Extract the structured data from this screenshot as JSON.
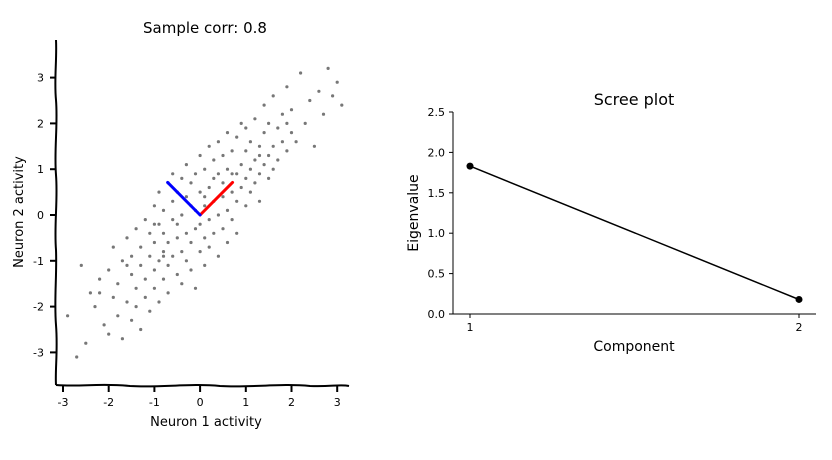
{
  "chart_data": [
    {
      "type": "scatter",
      "style": "xkcd",
      "title": "Sample corr: 0.8",
      "xlabel": "Neuron 1 activity",
      "ylabel": "Neuron 2 activity",
      "xlim": [
        -3.2,
        3.4
      ],
      "ylim": [
        -3.7,
        3.9
      ],
      "xticks": [
        -3,
        -2,
        -1,
        0,
        1,
        2,
        3
      ],
      "yticks": [
        -3,
        -2,
        -1,
        0,
        1,
        2,
        3
      ],
      "xtick_labels": [
        "-3",
        "-2",
        "-1",
        "0",
        "1",
        "2",
        "3"
      ],
      "ytick_labels": [
        "-3",
        "-2",
        "-1",
        "0",
        "1",
        "2",
        "3"
      ],
      "point_color": "#777777",
      "points": [
        [
          -2.9,
          -2.2
        ],
        [
          -2.7,
          -3.1
        ],
        [
          -2.5,
          -2.8
        ],
        [
          -2.4,
          -1.7
        ],
        [
          -2.6,
          -1.1
        ],
        [
          -2.3,
          -2.0
        ],
        [
          -2.2,
          -1.4
        ],
        [
          -2.1,
          -2.4
        ],
        [
          -2.0,
          -2.6
        ],
        [
          -2.0,
          -1.2
        ],
        [
          -1.9,
          -1.8
        ],
        [
          -1.9,
          -0.7
        ],
        [
          -1.8,
          -2.2
        ],
        [
          -1.8,
          -1.5
        ],
        [
          -1.7,
          -1.0
        ],
        [
          -1.7,
          -2.7
        ],
        [
          -1.6,
          -1.9
        ],
        [
          -1.6,
          -0.5
        ],
        [
          -1.5,
          -1.3
        ],
        [
          -1.5,
          -2.3
        ],
        [
          -1.5,
          -0.9
        ],
        [
          -1.4,
          -1.6
        ],
        [
          -1.4,
          -0.3
        ],
        [
          -1.4,
          -2.0
        ],
        [
          -1.3,
          -1.1
        ],
        [
          -1.3,
          -0.7
        ],
        [
          -1.3,
          -2.5
        ],
        [
          -1.2,
          -1.4
        ],
        [
          -1.2,
          -0.1
        ],
        [
          -1.2,
          -1.8
        ],
        [
          -1.1,
          -0.9
        ],
        [
          -1.1,
          -0.4
        ],
        [
          -1.1,
          -2.1
        ],
        [
          -1.0,
          -1.2
        ],
        [
          -1.0,
          0.2
        ],
        [
          -1.0,
          -1.6
        ],
        [
          -1.0,
          -0.6
        ],
        [
          -0.9,
          -1.0
        ],
        [
          -0.9,
          -0.2
        ],
        [
          -0.9,
          -1.9
        ],
        [
          -0.9,
          0.5
        ],
        [
          -0.8,
          -0.8
        ],
        [
          -0.8,
          -1.4
        ],
        [
          -0.8,
          0.1
        ],
        [
          -0.8,
          -0.4
        ],
        [
          -0.7,
          -1.1
        ],
        [
          -0.7,
          0.7
        ],
        [
          -0.7,
          -0.6
        ],
        [
          -0.7,
          -1.7
        ],
        [
          -0.6,
          0.3
        ],
        [
          -0.6,
          -0.9
        ],
        [
          -0.6,
          -0.1
        ],
        [
          -0.6,
          0.9
        ],
        [
          -0.5,
          -1.3
        ],
        [
          -0.5,
          -0.5
        ],
        [
          -0.5,
          0.5
        ],
        [
          -0.5,
          -0.2
        ],
        [
          -0.4,
          0.0
        ],
        [
          -0.4,
          -0.8
        ],
        [
          -0.4,
          0.8
        ],
        [
          -0.4,
          -1.5
        ],
        [
          -0.3,
          0.4
        ],
        [
          -0.3,
          -0.4
        ],
        [
          -0.3,
          1.1
        ],
        [
          -0.3,
          -1.0
        ],
        [
          -0.2,
          0.2
        ],
        [
          -0.2,
          -0.6
        ],
        [
          -0.2,
          0.7
        ],
        [
          -0.2,
          -1.2
        ],
        [
          -0.1,
          0.9
        ],
        [
          -0.1,
          -0.3
        ],
        [
          -0.1,
          0.1
        ],
        [
          -0.1,
          -1.6
        ],
        [
          0.0,
          0.5
        ],
        [
          0.0,
          -0.8
        ],
        [
          0.0,
          1.3
        ],
        [
          0.0,
          -0.2
        ],
        [
          0.1,
          0.2
        ],
        [
          0.1,
          -0.5
        ],
        [
          0.1,
          1.0
        ],
        [
          0.1,
          -1.1
        ],
        [
          0.2,
          0.6
        ],
        [
          0.2,
          -0.1
        ],
        [
          0.2,
          1.5
        ],
        [
          0.2,
          -0.7
        ],
        [
          0.3,
          0.3
        ],
        [
          0.3,
          1.2
        ],
        [
          0.3,
          -0.4
        ],
        [
          0.3,
          0.8
        ],
        [
          0.4,
          0.0
        ],
        [
          0.4,
          0.9
        ],
        [
          0.4,
          -0.9
        ],
        [
          0.4,
          1.6
        ],
        [
          0.5,
          0.4
        ],
        [
          0.5,
          1.3
        ],
        [
          0.5,
          -0.3
        ],
        [
          0.5,
          0.7
        ],
        [
          0.6,
          1.0
        ],
        [
          0.6,
          0.1
        ],
        [
          0.6,
          1.8
        ],
        [
          0.6,
          -0.6
        ],
        [
          0.7,
          0.5
        ],
        [
          0.7,
          1.4
        ],
        [
          0.7,
          -0.1
        ],
        [
          0.8,
          0.9
        ],
        [
          0.8,
          0.3
        ],
        [
          0.8,
          1.7
        ],
        [
          0.8,
          -0.4
        ],
        [
          0.9,
          1.1
        ],
        [
          0.9,
          0.6
        ],
        [
          0.9,
          2.0
        ],
        [
          1.0,
          0.8
        ],
        [
          1.0,
          1.4
        ],
        [
          1.0,
          0.2
        ],
        [
          1.0,
          1.9
        ],
        [
          1.1,
          1.0
        ],
        [
          1.1,
          0.5
        ],
        [
          1.1,
          1.6
        ],
        [
          1.2,
          1.2
        ],
        [
          1.2,
          0.7
        ],
        [
          1.2,
          2.1
        ],
        [
          1.3,
          0.9
        ],
        [
          1.3,
          1.5
        ],
        [
          1.3,
          0.3
        ],
        [
          1.4,
          1.1
        ],
        [
          1.4,
          1.8
        ],
        [
          1.4,
          2.4
        ],
        [
          1.5,
          1.3
        ],
        [
          1.5,
          0.8
        ],
        [
          1.5,
          2.0
        ],
        [
          1.6,
          1.5
        ],
        [
          1.6,
          1.0
        ],
        [
          1.6,
          2.6
        ],
        [
          1.7,
          1.2
        ],
        [
          1.7,
          1.9
        ],
        [
          1.8,
          1.6
        ],
        [
          1.8,
          2.2
        ],
        [
          1.9,
          1.4
        ],
        [
          1.9,
          2.8
        ],
        [
          2.0,
          1.8
        ],
        [
          2.0,
          2.3
        ],
        [
          2.1,
          1.6
        ],
        [
          2.2,
          3.1
        ],
        [
          2.3,
          2.0
        ],
        [
          2.4,
          2.5
        ],
        [
          2.5,
          1.5
        ],
        [
          2.6,
          2.7
        ],
        [
          2.7,
          2.2
        ],
        [
          2.8,
          3.2
        ],
        [
          2.9,
          2.6
        ],
        [
          3.0,
          2.9
        ],
        [
          3.1,
          2.4
        ],
        [
          -2.2,
          -1.7
        ],
        [
          -1.6,
          -1.1
        ],
        [
          -0.8,
          -0.9
        ],
        [
          0.1,
          0.4
        ],
        [
          0.7,
          0.9
        ],
        [
          1.3,
          1.3
        ],
        [
          1.9,
          2.0
        ],
        [
          -1.0,
          -0.2
        ]
      ],
      "components": [
        {
          "color": "#ff0000",
          "from": [
            0,
            0
          ],
          "to": [
            0.71,
            0.71
          ]
        },
        {
          "color": "#0000ff",
          "from": [
            0,
            0
          ],
          "to": [
            -0.71,
            0.71
          ]
        }
      ]
    },
    {
      "type": "line",
      "title": "Scree plot",
      "xlabel": "Component",
      "ylabel": "Eigenvalue",
      "xlim": [
        0.95,
        2.05
      ],
      "ylim": [
        0.0,
        2.5
      ],
      "xticks": [
        1,
        2
      ],
      "yticks": [
        0.0,
        0.5,
        1.0,
        1.5,
        2.0,
        2.5
      ],
      "xtick_labels": [
        "1",
        "2"
      ],
      "ytick_labels": [
        "0.0",
        "0.5",
        "1.0",
        "1.5",
        "2.0",
        "2.5"
      ],
      "x": [
        1,
        2
      ],
      "y": [
        1.83,
        0.18
      ],
      "line_color": "#000000",
      "marker": "circle"
    }
  ]
}
